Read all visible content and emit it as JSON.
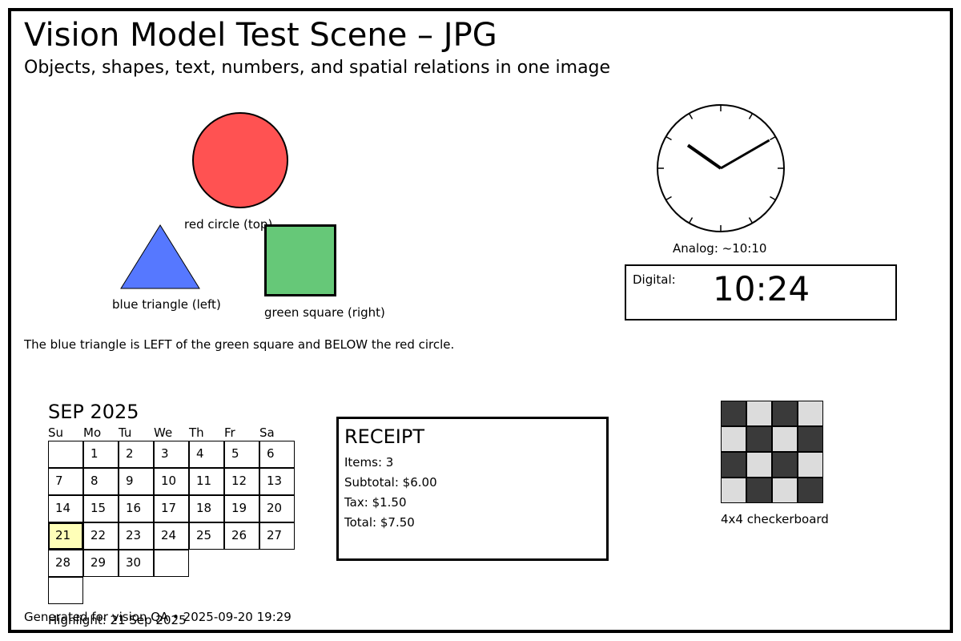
{
  "title": "Vision Model Test Scene – JPG",
  "subtitle": "Objects, shapes, text, numbers, and spatial relations in one image",
  "shapes": {
    "circle_label": "red circle (top)",
    "triangle_label": "blue triangle (left)",
    "square_label": "green square (right)",
    "circle_color": "#ff5252",
    "triangle_color": "#5678ff",
    "square_color": "#66c878"
  },
  "relation_text": "The blue triangle is LEFT of the green square and BELOW the red circle.",
  "analog_clock": {
    "label": "Analog: ~10:10",
    "hour": 10,
    "minute": 10
  },
  "digital_clock": {
    "label": "Digital:",
    "time": "10:24"
  },
  "calendar": {
    "title": "SEP 2025",
    "weekdays": [
      "Su",
      "Mo",
      "Tu",
      "We",
      "Th",
      "Fr",
      "Sa"
    ],
    "first_weekday_index": 1,
    "days_in_month": 30,
    "highlight_day": 21,
    "highlight_color": "#ffffb8",
    "highlight_note": "Highlight: 21 Sep 2025"
  },
  "receipt": {
    "title": "RECEIPT",
    "items": "Items: 3",
    "subtotal": "Subtotal: $6.00",
    "tax": "Tax: $1.50",
    "total": "Total: $7.50"
  },
  "checkerboard": {
    "label": "4x4 checkerboard",
    "size": 4,
    "dark_color": "#3a3a3a",
    "light_color": "#dcdcdc"
  },
  "footer": "Generated for vision QA • 2025-09-20 19:29"
}
